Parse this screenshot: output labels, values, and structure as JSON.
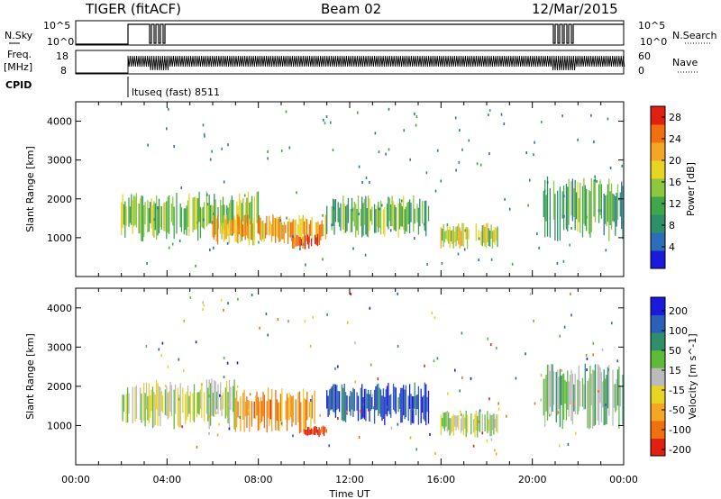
{
  "header": {
    "title_left": "TIGER (fitACF)",
    "title_center": "Beam 02",
    "title_right": "12/Mar/2015"
  },
  "labels": {
    "nsky": "N.Sky",
    "nsearch": "N.Search",
    "freq_top": "Freq.",
    "freq_unit": "[MHz]",
    "nave": "Nave",
    "cpid": "CPID",
    "cpid_value": "ltuseq (fast) 8511",
    "y_ticks_nsky": [
      "10^5",
      "10^0"
    ],
    "y_ticks_freq": [
      "18",
      "8"
    ],
    "y_ticks_nave": [
      "60",
      "0"
    ]
  },
  "chart_data": [
    {
      "type": "heatmap",
      "title": "",
      "parameter": "Power",
      "ylabel": "Slant Range [km]",
      "xlabel": "",
      "xlim": [
        "00:00",
        "24:00"
      ],
      "ylim": [
        0,
        4500
      ],
      "y_ticks": [
        1000,
        2000,
        3000,
        4000
      ],
      "colorbar": {
        "label": "Power [dB]",
        "ticks": [
          4,
          8,
          12,
          16,
          20,
          24,
          28
        ],
        "range": [
          0,
          30
        ],
        "colors": [
          "#1a1adc",
          "#2c6fb8",
          "#2f8f6a",
          "#3fa64a",
          "#8dc63f",
          "#e8d422",
          "#f5a623",
          "#f0700f",
          "#e02010"
        ]
      },
      "echo_regions": [
        {
          "t_start": 2.0,
          "t_end": 8.0,
          "r_min": 900,
          "r_max": 2200,
          "level": 14
        },
        {
          "t_start": 6.0,
          "t_end": 11.0,
          "r_min": 800,
          "r_max": 1600,
          "level": 22
        },
        {
          "t_start": 9.5,
          "t_end": 10.8,
          "r_min": 700,
          "r_max": 1100,
          "level": 28
        },
        {
          "t_start": 11.0,
          "t_end": 15.5,
          "r_min": 1000,
          "r_max": 2100,
          "level": 12
        },
        {
          "t_start": 16.0,
          "t_end": 18.5,
          "r_min": 700,
          "r_max": 1400,
          "level": 17
        },
        {
          "t_start": 20.5,
          "t_end": 24.0,
          "r_min": 900,
          "r_max": 2600,
          "level": 11
        }
      ]
    },
    {
      "type": "heatmap",
      "title": "",
      "parameter": "Velocity",
      "ylabel": "Slant Range [km]",
      "xlabel": "Time UT",
      "xlim": [
        "00:00",
        "24:00"
      ],
      "ylim": [
        0,
        4500
      ],
      "y_ticks": [
        1000,
        2000,
        3000,
        4000
      ],
      "x_ticks": [
        "00:00",
        "04:00",
        "08:00",
        "12:00",
        "16:00",
        "20:00",
        "00:00"
      ],
      "colorbar": {
        "label": "Velocity [m s^-1]",
        "ticks": [
          200,
          100,
          50,
          15,
          -15,
          -50,
          -100,
          -200
        ],
        "colors": [
          "#1a1adc",
          "#2c5fb8",
          "#2f8f6a",
          "#5fba3a",
          "#bbbbbb",
          "#e8d422",
          "#f5a623",
          "#f0700f",
          "#e02010"
        ]
      },
      "echo_regions": [
        {
          "t_start": 2.0,
          "t_end": 7.0,
          "r_min": 900,
          "r_max": 2200,
          "velocity": 0
        },
        {
          "t_start": 7.0,
          "t_end": 10.5,
          "r_min": 800,
          "r_max": 2000,
          "velocity": -120
        },
        {
          "t_start": 10.0,
          "t_end": 11.0,
          "r_min": 700,
          "r_max": 1000,
          "velocity": -200
        },
        {
          "t_start": 11.0,
          "t_end": 15.5,
          "r_min": 1000,
          "r_max": 2100,
          "velocity": 150
        },
        {
          "t_start": 16.0,
          "t_end": 18.5,
          "r_min": 700,
          "r_max": 1400,
          "velocity": 0
        },
        {
          "t_start": 20.5,
          "t_end": 24.0,
          "r_min": 900,
          "r_max": 2600,
          "velocity": 40
        }
      ]
    }
  ]
}
